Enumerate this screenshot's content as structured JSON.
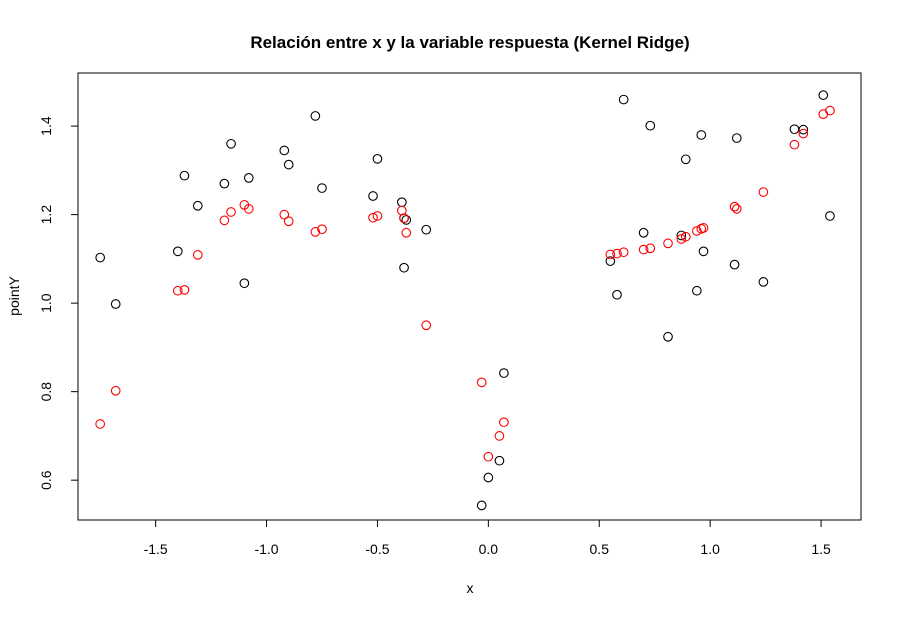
{
  "chart_data": {
    "type": "scatter",
    "title": "Relación entre x y la variable respuesta (Kernel Ridge)",
    "xlabel": "x",
    "ylabel": "pointY",
    "xlim": [
      -1.85,
      1.68
    ],
    "ylim": [
      0.51,
      1.52
    ],
    "x_ticks": [
      -1.5,
      -1.0,
      -0.5,
      0.0,
      0.5,
      1.0,
      1.5
    ],
    "x_tick_labels": [
      "-1.5",
      "-1.0",
      "-0.5",
      "0.0",
      "0.5",
      "1.0",
      "1.5"
    ],
    "y_ticks": [
      0.6,
      0.8,
      1.0,
      1.2,
      1.4
    ],
    "y_tick_labels": [
      "0.6",
      "0.8",
      "1.0",
      "1.2",
      "1.4"
    ],
    "grid": false,
    "legend": "none",
    "series": [
      {
        "color": "#000000",
        "points": [
          [
            -1.75,
            1.103
          ],
          [
            -1.68,
            0.998
          ],
          [
            -1.4,
            1.117
          ],
          [
            -1.37,
            1.288
          ],
          [
            -1.31,
            1.22
          ],
          [
            -1.19,
            1.27
          ],
          [
            -1.16,
            1.36
          ],
          [
            -1.1,
            1.045
          ],
          [
            -1.08,
            1.283
          ],
          [
            -0.92,
            1.345
          ],
          [
            -0.9,
            1.313
          ],
          [
            -0.78,
            1.423
          ],
          [
            -0.75,
            1.26
          ],
          [
            -0.52,
            1.242
          ],
          [
            -0.5,
            1.326
          ],
          [
            -0.39,
            1.228
          ],
          [
            -0.38,
            1.192
          ],
          [
            -0.37,
            1.188
          ],
          [
            -0.38,
            1.08
          ],
          [
            -0.28,
            1.166
          ],
          [
            -0.03,
            0.543
          ],
          [
            0.0,
            0.606
          ],
          [
            0.05,
            0.644
          ],
          [
            0.07,
            0.842
          ],
          [
            0.55,
            1.095
          ],
          [
            0.58,
            1.019
          ],
          [
            0.61,
            1.46
          ],
          [
            0.7,
            1.159
          ],
          [
            0.73,
            1.401
          ],
          [
            0.81,
            0.924
          ],
          [
            0.87,
            1.153
          ],
          [
            0.89,
            1.325
          ],
          [
            0.94,
            1.028
          ],
          [
            0.96,
            1.38
          ],
          [
            0.97,
            1.117
          ],
          [
            1.11,
            1.087
          ],
          [
            1.12,
            1.373
          ],
          [
            1.24,
            1.048
          ],
          [
            1.38,
            1.393
          ],
          [
            1.42,
            1.392
          ],
          [
            1.51,
            1.47
          ],
          [
            1.54,
            1.197
          ]
        ]
      },
      {
        "color": "#ff0000",
        "points": [
          [
            -1.75,
            0.727
          ],
          [
            -1.68,
            0.802
          ],
          [
            -1.4,
            1.028
          ],
          [
            -1.37,
            1.03
          ],
          [
            -1.31,
            1.109
          ],
          [
            -1.19,
            1.187
          ],
          [
            -1.16,
            1.206
          ],
          [
            -1.1,
            1.222
          ],
          [
            -1.08,
            1.213
          ],
          [
            -0.92,
            1.2
          ],
          [
            -0.9,
            1.185
          ],
          [
            -0.78,
            1.161
          ],
          [
            -0.75,
            1.167
          ],
          [
            -0.52,
            1.193
          ],
          [
            -0.5,
            1.197
          ],
          [
            -0.39,
            1.209
          ],
          [
            -0.38,
            1.192
          ],
          [
            -0.37,
            1.159
          ],
          [
            -0.28,
            0.95
          ],
          [
            -0.03,
            0.821
          ],
          [
            0.0,
            0.653
          ],
          [
            0.05,
            0.7
          ],
          [
            0.07,
            0.731
          ],
          [
            0.55,
            1.11
          ],
          [
            0.58,
            1.112
          ],
          [
            0.61,
            1.115
          ],
          [
            0.7,
            1.121
          ],
          [
            0.73,
            1.124
          ],
          [
            0.81,
            1.135
          ],
          [
            0.87,
            1.145
          ],
          [
            0.89,
            1.15
          ],
          [
            0.94,
            1.163
          ],
          [
            0.96,
            1.168
          ],
          [
            0.97,
            1.17
          ],
          [
            1.11,
            1.218
          ],
          [
            1.12,
            1.213
          ],
          [
            1.24,
            1.251
          ],
          [
            1.38,
            1.358
          ],
          [
            1.42,
            1.383
          ],
          [
            1.51,
            1.427
          ],
          [
            1.54,
            1.435
          ]
        ]
      }
    ]
  }
}
